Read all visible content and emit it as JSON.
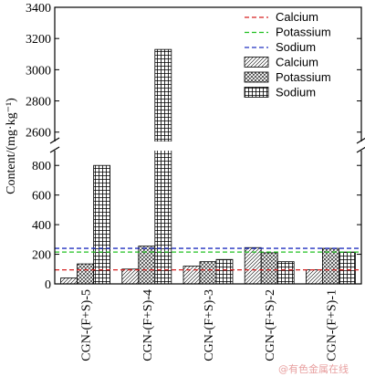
{
  "chart_data": {
    "type": "bar",
    "categories": [
      "CGN-(F+S)-5",
      "CGN-(F+S)-4",
      "CGN-(F+S)-3",
      "CGN-(F+S)-2",
      "CGN-(F+S)-1"
    ],
    "series": [
      {
        "name": "Calcium",
        "values": [
          40,
          100,
          120,
          245,
          95
        ],
        "pattern": "diagonal",
        "color": "#000000"
      },
      {
        "name": "Potassium",
        "values": [
          135,
          255,
          150,
          210,
          240
        ],
        "pattern": "crosshatch",
        "color": "#000000"
      },
      {
        "name": "Sodium",
        "values": [
          800,
          3130,
          165,
          150,
          215
        ],
        "pattern": "grid",
        "color": "#000000"
      }
    ],
    "reference_lines": [
      {
        "name": "Calcium",
        "value": 95,
        "color": "#d62020",
        "style": "dashed"
      },
      {
        "name": "Potassium",
        "value": 215,
        "color": "#20c020",
        "style": "dashed"
      },
      {
        "name": "Sodium",
        "value": 240,
        "color": "#2030c0",
        "style": "dashed"
      }
    ],
    "ylabel": "Content/(mg·kg⁻¹)",
    "y_ticks_lower": [
      0,
      200,
      400,
      600,
      800
    ],
    "y_ticks_upper": [
      2600,
      2800,
      3000,
      3200,
      3400
    ],
    "ylim_lower": [
      0,
      900
    ],
    "ylim_upper": [
      2540,
      3400
    ],
    "axis_break": true,
    "legend": {
      "placement": "top-right",
      "entries": [
        "Calcium",
        "Potassium",
        "Sodium",
        "Calcium",
        "Potassium",
        "Sodium"
      ]
    },
    "grid": false
  },
  "watermark": "@有色金属在线"
}
